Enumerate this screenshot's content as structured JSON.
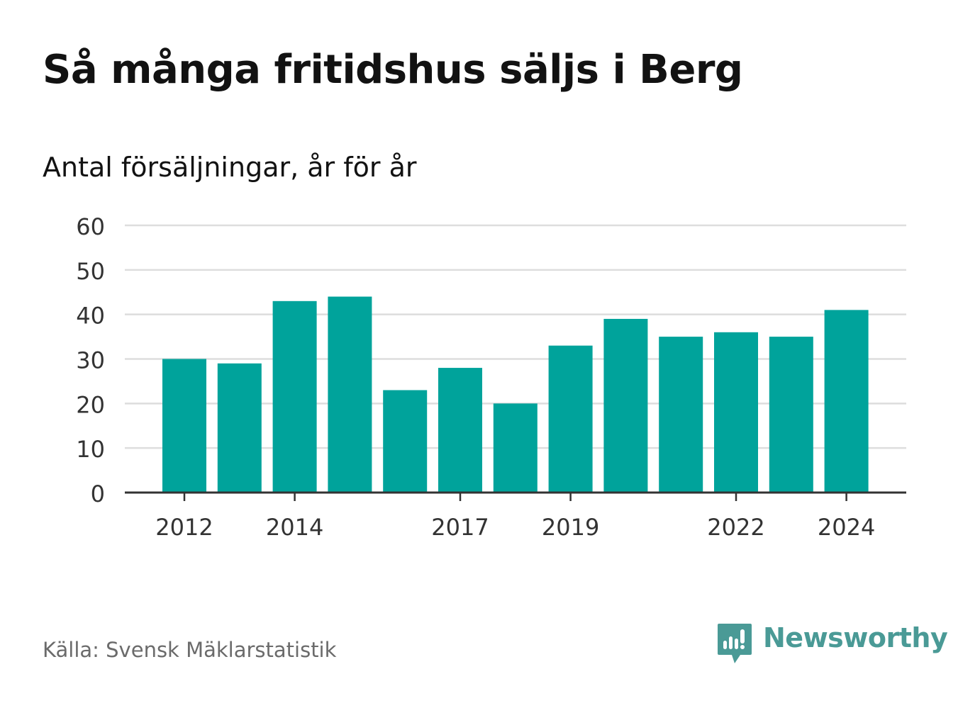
{
  "header": {
    "title": "Så många fritidshus säljs i Berg",
    "subtitle": "Antal försäljningar, år för år"
  },
  "footer": {
    "source": "Källa: Svensk Mäklarstatistik",
    "brand": "Newsworthy",
    "brand_icon": "newsworthy-logo-icon"
  },
  "colors": {
    "bar": "#00a39b",
    "grid": "#dddddd",
    "axis": "#333333",
    "brand": "#4a9a96"
  },
  "chart_data": {
    "type": "bar",
    "categories": [
      "2012",
      "2013",
      "2014",
      "2015",
      "2016",
      "2017",
      "2018",
      "2019",
      "2020",
      "2021",
      "2022",
      "2023",
      "2024"
    ],
    "values": [
      30,
      29,
      43,
      44,
      23,
      28,
      20,
      33,
      39,
      35,
      36,
      35,
      41
    ],
    "x_tick_labels": [
      "2012",
      "2014",
      "2017",
      "2019",
      "2022",
      "2024"
    ],
    "y_ticks": [
      0,
      10,
      20,
      30,
      40,
      50,
      60
    ],
    "ylim": [
      0,
      60
    ],
    "grid": true
  }
}
